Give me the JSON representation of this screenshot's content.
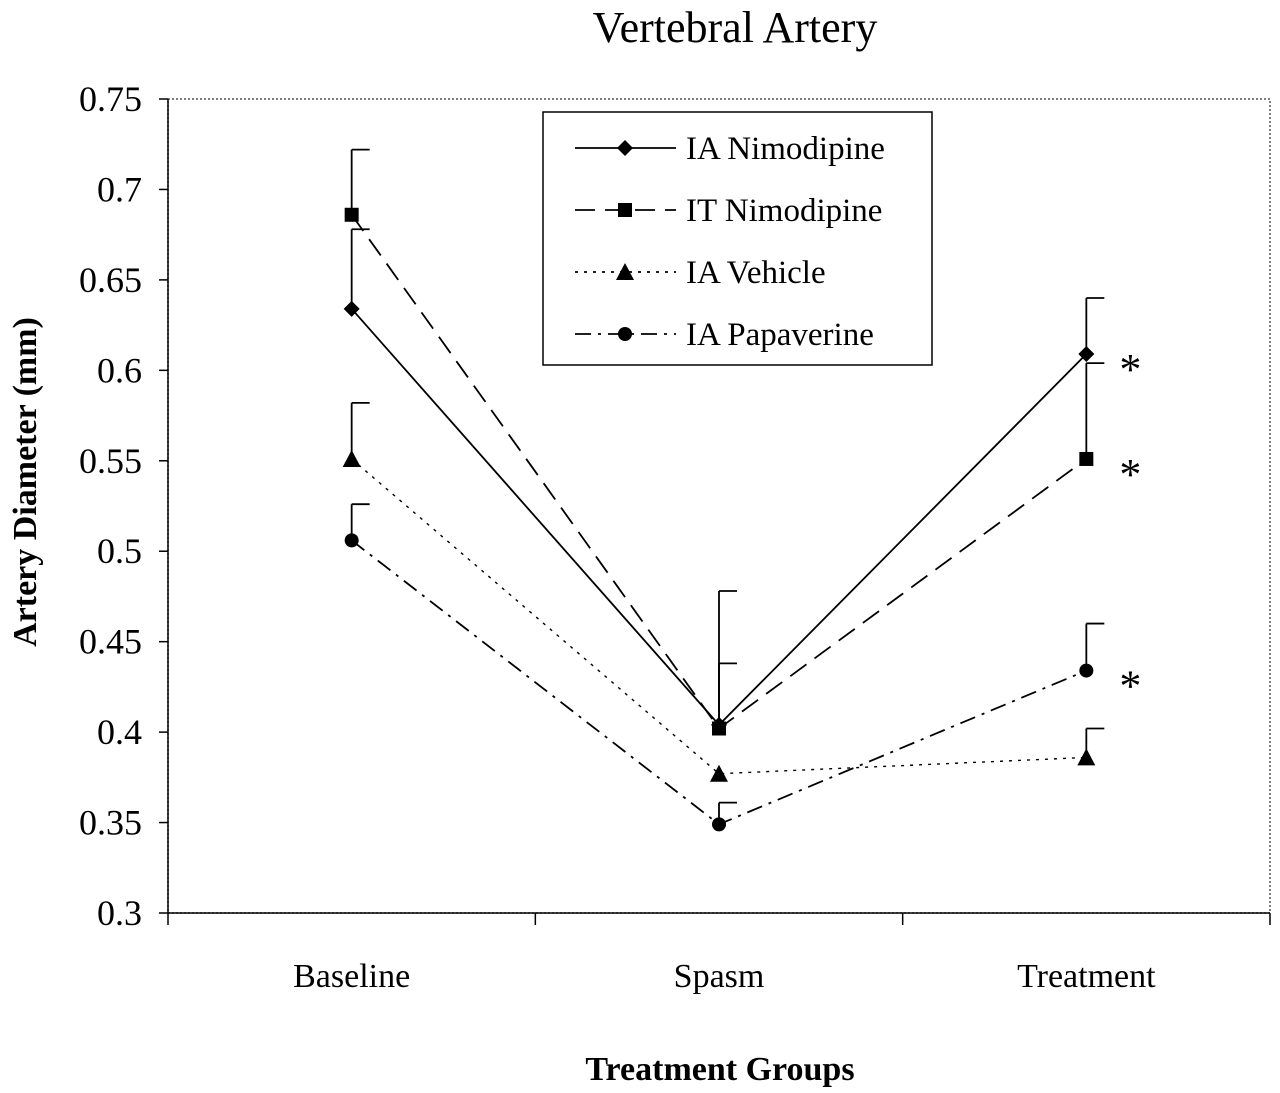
{
  "chart_data": {
    "type": "line",
    "title": "Vertebral Artery",
    "xlabel": "Treatment Groups",
    "ylabel": "Artery Diameter (mm)",
    "categories": [
      "Baseline",
      "Spasm",
      "Treatment"
    ],
    "ylim": [
      0.3,
      0.75
    ],
    "yticks": [
      "0.75",
      "0.7",
      "0.65",
      "0.6",
      "0.55",
      "0.5",
      "0.45",
      "0.4",
      "0.35",
      "0.3"
    ],
    "grid": false,
    "legend_position": "top-center",
    "series": [
      {
        "name": "IA Nimodipine",
        "marker": "diamond",
        "line_style": "solid",
        "values": [
          0.634,
          0.404,
          0.609
        ],
        "error": [
          0.044,
          0.034,
          0.031
        ],
        "significant": [
          false,
          false,
          true
        ]
      },
      {
        "name": "IT Nimodipine",
        "marker": "square",
        "line_style": "dashed",
        "values": [
          0.686,
          0.402,
          0.551
        ],
        "error": [
          0.036,
          0.076,
          0.053
        ],
        "significant": [
          false,
          false,
          true
        ]
      },
      {
        "name": "IA Vehicle",
        "marker": "triangle",
        "line_style": "dotted",
        "values": [
          0.551,
          0.377,
          0.386
        ],
        "error": [
          0.031,
          0.0,
          0.016
        ],
        "significant": [
          false,
          false,
          false
        ]
      },
      {
        "name": "IA Papaverine",
        "marker": "circle",
        "line_style": "dash-dot",
        "values": [
          0.506,
          0.349,
          0.434
        ],
        "error": [
          0.02,
          0.012,
          0.026
        ],
        "significant": [
          false,
          false,
          true
        ]
      }
    ],
    "significance_marker": "*"
  }
}
